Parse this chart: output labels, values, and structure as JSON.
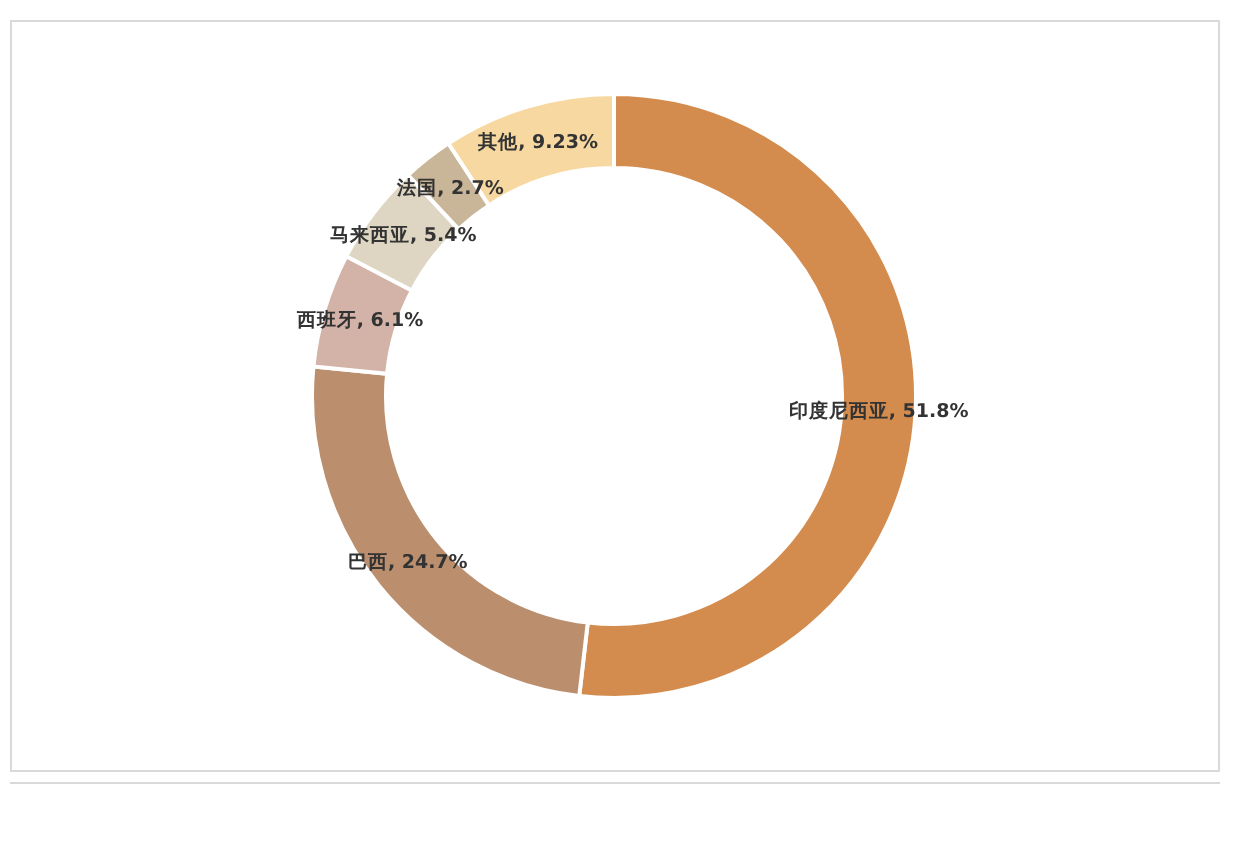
{
  "chart_data": {
    "type": "donut",
    "categories": [
      "印度尼西亚",
      "巴西",
      "西班牙",
      "马来西亚",
      "法国",
      "其他"
    ],
    "values": [
      51.8,
      24.7,
      6.1,
      5.4,
      2.7,
      9.23
    ],
    "colors": [
      "#d48c4e",
      "#bb8f6e",
      "#d3b3a7",
      "#ded6c3",
      "#c9b597",
      "#f6d8a0"
    ],
    "value_labels": [
      ", 51.8%",
      ", 24.7%",
      ", 6.1%",
      ", 5.4%",
      ", 2.7%",
      ", 9.23%"
    ]
  }
}
